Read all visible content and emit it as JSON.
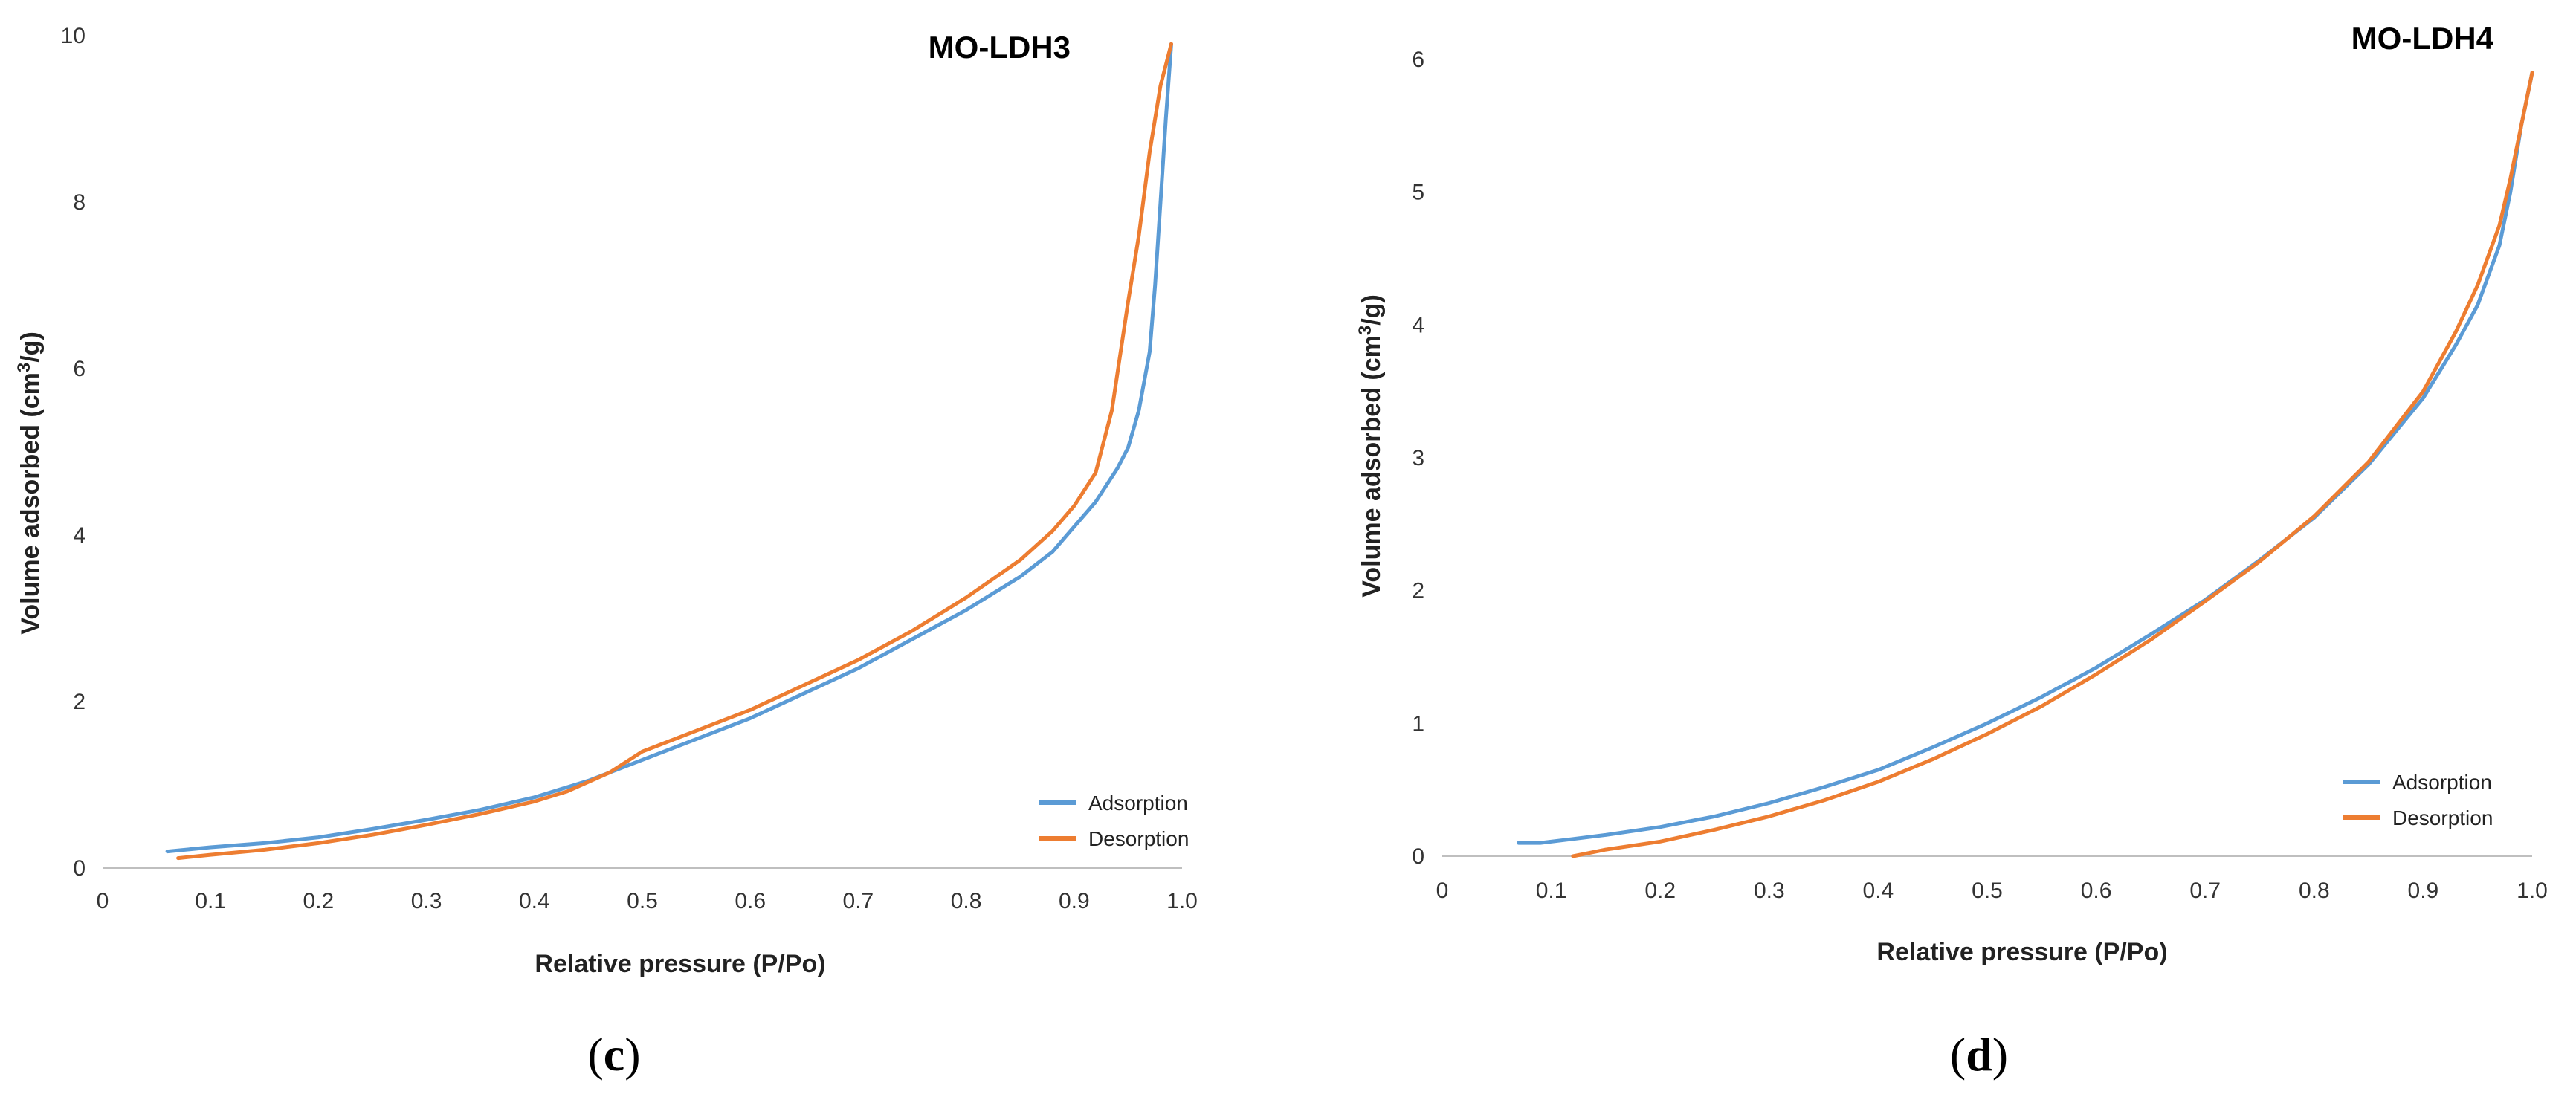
{
  "chart_data": [
    {
      "type": "line",
      "title": "MO-LDH3",
      "panel_label": "c",
      "xlabel": "Relative pressure (P/Po)",
      "ylabel": "Volume adsorbed (cm",
      "ylabel_sup": "3",
      "ylabel_unit": "/g)",
      "xlim": [
        0,
        1.0
      ],
      "ylim": [
        0,
        10
      ],
      "x_ticks": [
        0,
        0.1,
        0.2,
        0.3,
        0.4,
        0.5,
        0.6,
        0.7,
        0.8,
        0.9,
        1.0
      ],
      "x_tick_labels": [
        "0",
        "0.1",
        "0.2",
        "0.3",
        "0.4",
        "0.5",
        "0.6",
        "0.7",
        "0.8",
        "0.9",
        "1.0"
      ],
      "y_ticks": [
        0,
        2,
        4,
        6,
        8,
        10
      ],
      "y_tick_labels": [
        "0",
        "2",
        "4",
        "6",
        "8",
        "10"
      ],
      "legend_position": "bottom-right",
      "series": [
        {
          "name": "Adsorption",
          "color": "#5b9bd5",
          "x": [
            0.06,
            0.1,
            0.15,
            0.2,
            0.25,
            0.3,
            0.35,
            0.4,
            0.45,
            0.5,
            0.55,
            0.6,
            0.65,
            0.7,
            0.75,
            0.8,
            0.85,
            0.88,
            0.9,
            0.92,
            0.94,
            0.95,
            0.96,
            0.97,
            0.975,
            0.98,
            0.985,
            0.99
          ],
          "y": [
            0.2,
            0.25,
            0.3,
            0.37,
            0.47,
            0.58,
            0.7,
            0.85,
            1.05,
            1.3,
            1.55,
            1.8,
            2.1,
            2.4,
            2.75,
            3.1,
            3.5,
            3.8,
            4.1,
            4.4,
            4.8,
            5.05,
            5.5,
            6.2,
            7.0,
            8.0,
            9.0,
            9.9
          ]
        },
        {
          "name": "Desorption",
          "color": "#ed7d31",
          "x": [
            0.07,
            0.1,
            0.15,
            0.2,
            0.25,
            0.3,
            0.35,
            0.4,
            0.43,
            0.47,
            0.5,
            0.55,
            0.6,
            0.65,
            0.7,
            0.75,
            0.8,
            0.85,
            0.88,
            0.9,
            0.92,
            0.935,
            0.95,
            0.96,
            0.97,
            0.98,
            0.99
          ],
          "y": [
            0.12,
            0.16,
            0.22,
            0.3,
            0.4,
            0.52,
            0.65,
            0.8,
            0.92,
            1.15,
            1.4,
            1.65,
            1.9,
            2.2,
            2.5,
            2.85,
            3.25,
            3.7,
            4.05,
            4.35,
            4.75,
            5.5,
            6.8,
            7.6,
            8.6,
            9.4,
            9.9
          ]
        }
      ]
    },
    {
      "type": "line",
      "title": "MO-LDH4",
      "panel_label": "d",
      "xlabel": "Relative pressure (P/Po)",
      "ylabel": "Volume adsorbed (cm",
      "ylabel_sup": "3",
      "ylabel_unit": "/g)",
      "xlim": [
        0,
        1.0
      ],
      "ylim": [
        0,
        6
      ],
      "x_ticks": [
        0,
        0.1,
        0.2,
        0.3,
        0.4,
        0.5,
        0.6,
        0.7,
        0.8,
        0.9,
        1.0
      ],
      "x_tick_labels": [
        "0",
        "0.1",
        "0.2",
        "0.3",
        "0.4",
        "0.5",
        "0.6",
        "0.7",
        "0.8",
        "0.9",
        "1.0"
      ],
      "y_ticks": [
        0,
        1,
        2,
        3,
        4,
        5,
        6
      ],
      "y_tick_labels": [
        "0",
        "1",
        "2",
        "3",
        "4",
        "5",
        "6"
      ],
      "legend_position": "bottom-right",
      "series": [
        {
          "name": "Adsorption",
          "color": "#5b9bd5",
          "x": [
            0.07,
            0.09,
            0.12,
            0.15,
            0.2,
            0.25,
            0.3,
            0.35,
            0.4,
            0.45,
            0.5,
            0.55,
            0.6,
            0.65,
            0.7,
            0.75,
            0.8,
            0.85,
            0.9,
            0.93,
            0.95,
            0.97,
            0.98,
            0.99,
            1.0
          ],
          "y": [
            0.1,
            0.1,
            0.13,
            0.16,
            0.22,
            0.3,
            0.4,
            0.52,
            0.65,
            0.82,
            1.0,
            1.2,
            1.42,
            1.67,
            1.93,
            2.23,
            2.55,
            2.95,
            3.45,
            3.85,
            4.15,
            4.6,
            5.0,
            5.5,
            5.9
          ]
        },
        {
          "name": "Desorption",
          "color": "#ed7d31",
          "x": [
            0.12,
            0.15,
            0.2,
            0.25,
            0.3,
            0.35,
            0.4,
            0.45,
            0.5,
            0.55,
            0.6,
            0.65,
            0.7,
            0.75,
            0.8,
            0.85,
            0.9,
            0.93,
            0.95,
            0.97,
            0.98,
            0.99,
            1.0
          ],
          "y": [
            0.0,
            0.05,
            0.11,
            0.2,
            0.3,
            0.42,
            0.56,
            0.73,
            0.92,
            1.13,
            1.37,
            1.63,
            1.92,
            2.22,
            2.56,
            2.97,
            3.5,
            3.95,
            4.3,
            4.75,
            5.1,
            5.5,
            5.9
          ]
        }
      ]
    }
  ]
}
